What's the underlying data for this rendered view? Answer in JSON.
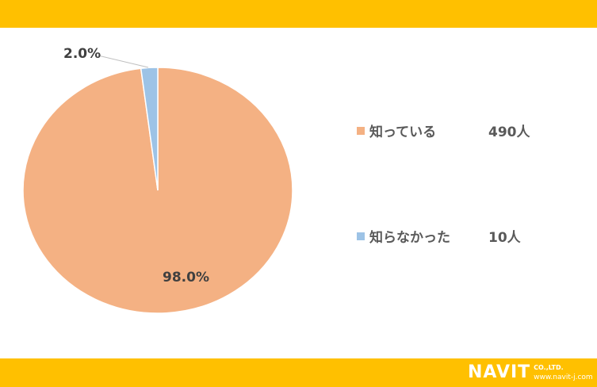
{
  "chart_data": {
    "type": "pie",
    "slices": [
      {
        "label": "知っている",
        "count": "490人",
        "value": 98.0,
        "data_label": "98.0%",
        "color": "#F4B183"
      },
      {
        "label": "知らなかった",
        "count": "10人",
        "value": 2.0,
        "data_label": "2.0%",
        "color": "#9DC3E6"
      }
    ],
    "legend_placement": "right"
  },
  "theme": {
    "banner_color": "#FFC000"
  },
  "logo": {
    "text": "NAVIT",
    "suffix": "CO.,LTD.",
    "url": "www.navit-j.com"
  }
}
